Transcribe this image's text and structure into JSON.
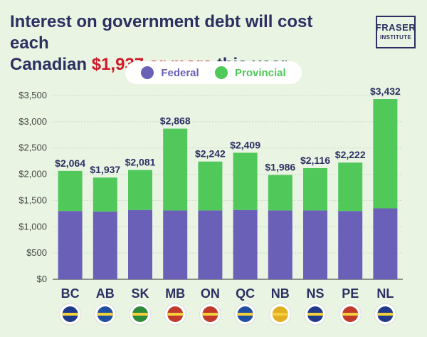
{
  "header": {
    "title_part1": "Interest on government debt will cost each",
    "title_part2": "Canadian ",
    "title_highlight": "$1,937 or more",
    "title_part3": " this year"
  },
  "logo": {
    "line1": "FRASER",
    "line2": "INSTITUTE"
  },
  "colors": {
    "federal": "#6a60b8",
    "provincial": "#50c85a",
    "title": "#2c2f62",
    "highlight": "#d11a2a",
    "background": "#e9f5e2"
  },
  "legend": {
    "federal_label": "Federal",
    "provincial_label": "Provincial"
  },
  "chart_data": {
    "type": "bar",
    "stacked": true,
    "title": "Interest on government debt will cost each Canadian $1,937 or more this year",
    "categories": [
      "BC",
      "AB",
      "SK",
      "MB",
      "ON",
      "QC",
      "NB",
      "NS",
      "PE",
      "NL"
    ],
    "series": [
      {
        "name": "Federal",
        "values": [
          1300,
          1290,
          1320,
          1310,
          1310,
          1320,
          1310,
          1310,
          1300,
          1350
        ]
      },
      {
        "name": "Provincial",
        "values": [
          764,
          647,
          761,
          1558,
          932,
          1089,
          676,
          806,
          922,
          2082
        ]
      }
    ],
    "totals": [
      2064,
      1937,
      2081,
      2868,
      2242,
      2409,
      1986,
      2116,
      2222,
      3432
    ],
    "total_labels": [
      "$2,064",
      "$1,937",
      "$2,081",
      "$2,868",
      "$2,242",
      "$2,409",
      "$1,986",
      "$2,116",
      "$2,222",
      "$3,432"
    ],
    "y_ticks": [
      0,
      500,
      1000,
      1500,
      2000,
      2500,
      3000,
      3500
    ],
    "y_tick_labels": [
      "$0",
      "$500",
      "$1,000",
      "$1,500",
      "$2,000",
      "$2,500",
      "$3,000",
      "$3,500"
    ],
    "ylim": [
      0,
      3500
    ],
    "grid": true,
    "legend_position": "top-center",
    "icons": [
      "bc-flag-icon",
      "ab-flag-icon",
      "sk-flag-icon",
      "mb-flag-icon",
      "on-flag-icon",
      "qc-flag-icon",
      "nb-flag-icon",
      "ns-flag-icon",
      "pe-flag-icon",
      "nl-flag-icon"
    ]
  }
}
